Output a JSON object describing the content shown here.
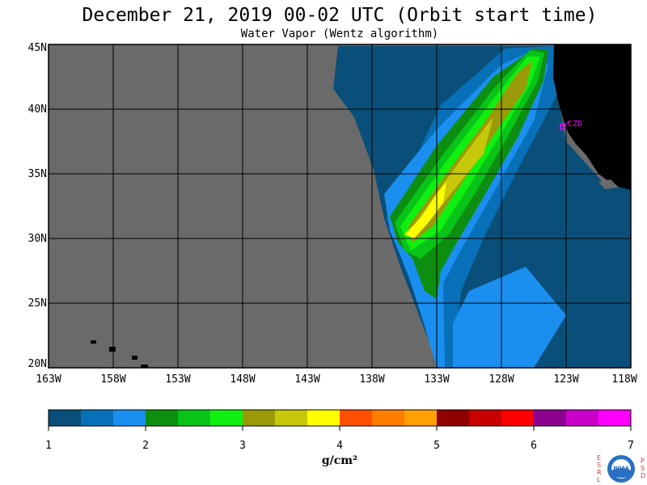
{
  "header": {
    "title": "December 21, 2019  00-02 UTC  (Orbit start time)",
    "subtitle": "Water Vapor (Wentz algorithm)"
  },
  "map": {
    "lat_labels": [
      "45N",
      "40N",
      "35N",
      "30N",
      "25N",
      "20N"
    ],
    "lon_labels": [
      "163W",
      "158W",
      "153W",
      "148W",
      "143W",
      "138W",
      "133W",
      "128W",
      "123W",
      "118W"
    ],
    "station_label": "CZD",
    "colors": {
      "no_data": "#6a6a6a",
      "land": "#000000",
      "station": "#ff00ff",
      "grid": "#000000"
    }
  },
  "colorbar": {
    "ticks": [
      "1",
      "2",
      "3",
      "4",
      "5",
      "6",
      "7"
    ],
    "units": "g/cm²",
    "colors": [
      "#0a4f7a",
      "#0870b8",
      "#1a8ff0",
      "#0e8e10",
      "#08c418",
      "#10f010",
      "#9a9a08",
      "#c8c80a",
      "#ffff00",
      "#ff5000",
      "#ff7e00",
      "#ffa000",
      "#900000",
      "#c80000",
      "#ff0000",
      "#8e008e",
      "#c800c8",
      "#ff00ff"
    ]
  },
  "logo": {
    "left_letters": [
      "E",
      "S",
      "R",
      "L"
    ],
    "right_letters": [
      "P",
      "S",
      "D"
    ],
    "center_text": "NOAA"
  }
}
